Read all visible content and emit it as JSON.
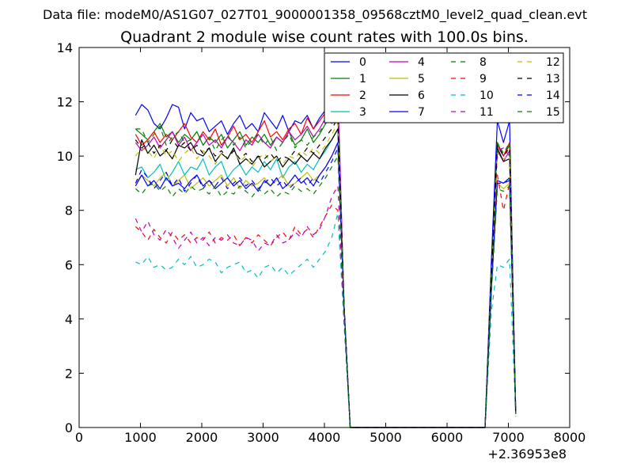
{
  "chart_data": {
    "type": "line",
    "suptitle": "Data file: modeM0/AS1G07_027T01_9000001358_09568cztM0_level2_quad_clean.evt",
    "title": "Quadrant 2 module wise count rates with 100.0s bins.",
    "xlabel": "",
    "ylabel": "",
    "x_offset_label": "+2.36953e8",
    "xlim": [
      0,
      8000
    ],
    "ylim": [
      0,
      14
    ],
    "xticks": [
      "0",
      "1000",
      "2000",
      "3000",
      "4000",
      "5000",
      "6000",
      "7000",
      "8000"
    ],
    "yticks": [
      "0",
      "2",
      "4",
      "6",
      "8",
      "10",
      "12",
      "14"
    ],
    "grid": false,
    "legend_location": "top-right",
    "legend_columns": 4,
    "x": [
      920,
      1020,
      1120,
      1220,
      1320,
      1420,
      1520,
      1620,
      1720,
      1820,
      1920,
      2020,
      2120,
      2220,
      2320,
      2420,
      2520,
      2620,
      2720,
      2820,
      2920,
      3020,
      3120,
      3220,
      3320,
      3420,
      3520,
      3620,
      3720,
      3820,
      3920,
      4020,
      4120,
      4220,
      4320,
      4420,
      4520,
      4620,
      4720,
      4820,
      4920,
      5020,
      5120,
      5220,
      5320,
      5420,
      5520,
      5620,
      5720,
      5820,
      5920,
      6020,
      6120,
      6220,
      6320,
      6420,
      6520,
      6620,
      6720,
      6820,
      6920,
      7020,
      7120
    ],
    "series": [
      {
        "name": "0",
        "color": "#0000ff",
        "dash": "solid",
        "values": [
          11.5,
          11.9,
          11.7,
          11.2,
          11.0,
          11.4,
          11.9,
          11.8,
          11.0,
          11.6,
          11.3,
          11.4,
          10.9,
          11.1,
          11.3,
          10.8,
          11.2,
          11.5,
          11.0,
          11.2,
          10.9,
          11.6,
          11.3,
          11.0,
          11.5,
          10.9,
          11.3,
          11.2,
          11.5,
          11.0,
          11.4,
          11.7,
          11.9,
          12.0,
          4.5,
          0,
          0,
          0,
          0,
          0,
          0,
          0,
          0,
          0,
          0,
          0,
          0,
          0,
          0,
          0,
          0,
          0,
          0,
          0,
          0,
          0,
          0,
          0,
          6.0,
          11.3,
          10.5,
          11.3,
          0.5
        ]
      },
      {
        "name": "1",
        "color": "#008000",
        "dash": "solid",
        "values": [
          11.0,
          10.8,
          10.6,
          10.9,
          11.2,
          10.7,
          10.9,
          10.5,
          10.8,
          10.6,
          10.9,
          10.4,
          10.7,
          10.5,
          10.8,
          10.3,
          10.6,
          10.9,
          10.4,
          10.7,
          10.5,
          10.8,
          10.4,
          10.7,
          10.5,
          10.9,
          10.4,
          10.6,
          11.0,
          10.5,
          10.8,
          11.2,
          11.5,
          11.8,
          4.5,
          0,
          0,
          0,
          0,
          0,
          0,
          0,
          0,
          0,
          0,
          0,
          0,
          0,
          0,
          0,
          0,
          0,
          0,
          0,
          0,
          0,
          0,
          0,
          5.5,
          10.5,
          10.0,
          10.4,
          0.5
        ]
      },
      {
        "name": "2",
        "color": "#ff0000",
        "dash": "solid",
        "values": [
          10.8,
          10.4,
          10.6,
          10.9,
          10.5,
          10.8,
          10.6,
          10.9,
          11.2,
          10.7,
          10.5,
          10.9,
          10.6,
          11.0,
          10.4,
          10.7,
          11.1,
          10.6,
          10.8,
          10.5,
          10.9,
          11.3,
          10.7,
          10.9,
          10.6,
          11.0,
          11.2,
          10.8,
          11.4,
          11.0,
          11.3,
          11.6,
          11.2,
          11.5,
          4.5,
          0,
          0,
          0,
          0,
          0,
          0,
          0,
          0,
          0,
          0,
          0,
          0,
          0,
          0,
          0,
          0,
          0,
          0,
          0,
          0,
          0,
          0,
          0,
          5.5,
          10.4,
          10.0,
          10.5,
          0.5
        ]
      },
      {
        "name": "3",
        "color": "#00bfbf",
        "dash": "solid",
        "values": [
          9.5,
          9.6,
          9.2,
          9.4,
          9.7,
          9.1,
          9.4,
          9.8,
          9.3,
          9.6,
          9.5,
          9.9,
          9.3,
          9.6,
          9.8,
          9.2,
          9.5,
          9.7,
          9.3,
          9.6,
          9.4,
          9.8,
          9.5,
          9.9,
          9.2,
          9.6,
          9.8,
          9.4,
          9.7,
          9.5,
          9.9,
          10.2,
          10.6,
          11.0,
          4.5,
          0,
          0,
          0,
          0,
          0,
          0,
          0,
          0,
          0,
          0,
          0,
          0,
          0,
          0,
          0,
          0,
          0,
          0,
          0,
          0,
          0,
          0,
          0,
          5.0,
          9.1,
          9.0,
          9.2,
          0.5
        ]
      },
      {
        "name": "4",
        "color": "#bf00bf",
        "dash": "solid",
        "values": [
          10.5,
          10.2,
          10.4,
          10.7,
          10.3,
          10.6,
          10.9,
          10.4,
          10.7,
          10.2,
          10.5,
          10.8,
          10.4,
          10.6,
          10.3,
          10.7,
          10.5,
          10.2,
          10.6,
          10.4,
          10.8,
          10.5,
          10.3,
          10.7,
          10.5,
          10.9,
          10.6,
          10.8,
          11.1,
          10.7,
          11.0,
          11.4,
          11.8,
          12.6,
          4.5,
          0,
          0,
          0,
          0,
          0,
          0,
          0,
          0,
          0,
          0,
          0,
          0,
          0,
          0,
          0,
          0,
          0,
          0,
          0,
          0,
          0,
          0,
          0,
          5.5,
          10.2,
          9.8,
          10.2,
          0.5
        ]
      },
      {
        "name": "5",
        "color": "#bfbf00",
        "dash": "solid",
        "values": [
          9.0,
          9.3,
          9.1,
          8.9,
          9.2,
          9.4,
          8.9,
          9.1,
          9.3,
          8.8,
          9.0,
          9.2,
          8.9,
          9.1,
          9.3,
          8.9,
          9.2,
          8.8,
          9.1,
          8.9,
          9.0,
          9.2,
          8.9,
          9.1,
          9.3,
          8.9,
          9.0,
          9.2,
          9.4,
          9.1,
          9.3,
          9.6,
          10.0,
          10.5,
          4.5,
          0,
          0,
          0,
          0,
          0,
          0,
          0,
          0,
          0,
          0,
          0,
          0,
          0,
          0,
          0,
          0,
          0,
          0,
          0,
          0,
          0,
          0,
          0,
          5.0,
          9.0,
          8.8,
          9.0,
          0.5
        ]
      },
      {
        "name": "6",
        "color": "#000000",
        "dash": "solid",
        "values": [
          9.3,
          10.6,
          10.1,
          10.4,
          10.0,
          10.2,
          9.9,
          10.4,
          10.3,
          10.5,
          10.1,
          10.0,
          10.3,
          9.8,
          10.1,
          9.9,
          10.3,
          9.7,
          9.9,
          9.7,
          10.0,
          9.6,
          9.8,
          10.0,
          9.6,
          9.9,
          9.7,
          10.0,
          9.8,
          10.1,
          9.9,
          10.3,
          10.6,
          11.0,
          4.5,
          0,
          0,
          0,
          0,
          0,
          0,
          0,
          0,
          0,
          0,
          0,
          0,
          0,
          0,
          0,
          0,
          0,
          0,
          0,
          0,
          0,
          0,
          0,
          5.5,
          10.3,
          9.8,
          9.9,
          0.5
        ]
      },
      {
        "name": "7",
        "color": "#0000ff",
        "dash": "solid",
        "values": [
          8.9,
          9.3,
          8.9,
          9.1,
          8.8,
          9.2,
          8.9,
          9.0,
          8.8,
          9.1,
          9.3,
          8.9,
          9.1,
          8.8,
          9.0,
          9.2,
          8.9,
          9.1,
          8.8,
          9.0,
          8.7,
          9.1,
          8.9,
          9.2,
          8.8,
          9.0,
          9.3,
          9.0,
          9.2,
          8.9,
          9.3,
          9.6,
          10.0,
          10.5,
          4.5,
          0,
          0,
          0,
          0,
          0,
          0,
          0,
          0,
          0,
          0,
          0,
          0,
          0,
          0,
          0,
          0,
          0,
          0,
          0,
          0,
          0,
          0,
          0,
          5.0,
          9.1,
          9.0,
          9.2,
          0.5
        ]
      },
      {
        "name": "8",
        "color": "#008000",
        "dash": "dashed",
        "values": [
          11.0,
          11.0,
          10.5,
          10.8,
          11.1,
          10.4,
          10.7,
          10.9,
          10.5,
          10.6,
          10.9,
          10.4,
          10.7,
          10.2,
          10.6,
          10.8,
          10.4,
          10.7,
          10.3,
          10.6,
          10.8,
          10.4,
          10.7,
          10.2,
          10.5,
          10.8,
          10.3,
          10.6,
          10.4,
          10.7,
          10.9,
          11.2,
          11.4,
          11.6,
          4.5,
          0,
          0,
          0,
          0,
          0,
          0,
          0,
          0,
          0,
          0,
          0,
          0,
          0,
          0,
          0,
          0,
          0,
          0,
          0,
          0,
          0,
          0,
          0,
          5.5,
          10.5,
          10.1,
          10.5,
          0.5
        ]
      },
      {
        "name": "9",
        "color": "#ff0000",
        "dash": "dashed",
        "values": [
          7.4,
          7.2,
          6.9,
          7.3,
          7.0,
          6.8,
          7.2,
          6.9,
          7.1,
          6.8,
          7.0,
          6.9,
          7.2,
          6.8,
          7.0,
          6.9,
          7.1,
          6.7,
          7.0,
          6.8,
          7.1,
          6.9,
          6.7,
          7.0,
          7.2,
          6.9,
          7.4,
          7.1,
          7.3,
          7.0,
          7.4,
          7.8,
          8.2,
          8.0,
          4.2,
          0,
          0,
          0,
          0,
          0,
          0,
          0,
          0,
          0,
          0,
          0,
          0,
          0,
          0,
          0,
          0,
          0,
          0,
          0,
          0,
          0,
          0,
          0,
          5.0,
          9.3,
          8.0,
          9.0,
          0.5
        ]
      },
      {
        "name": "10",
        "color": "#00bfbf",
        "dash": "dashed",
        "values": [
          6.1,
          6.0,
          6.3,
          5.9,
          6.0,
          5.8,
          5.9,
          6.2,
          6.0,
          6.3,
          5.9,
          6.0,
          6.2,
          6.1,
          5.7,
          5.9,
          6.0,
          6.1,
          5.7,
          5.8,
          5.5,
          5.9,
          6.0,
          5.7,
          5.9,
          5.6,
          5.8,
          6.0,
          6.2,
          5.9,
          6.2,
          6.5,
          7.0,
          7.9,
          3.8,
          0,
          0,
          0,
          0,
          0,
          0,
          0,
          0,
          0,
          0,
          0,
          0,
          0,
          0,
          0,
          0,
          0,
          0,
          0,
          0,
          0,
          0,
          0,
          4.2,
          6.0,
          5.9,
          6.2,
          0.4
        ]
      },
      {
        "name": "11",
        "color": "#bf00bf",
        "dash": "dashed",
        "values": [
          7.7,
          7.2,
          7.6,
          7.1,
          6.9,
          7.3,
          7.0,
          6.6,
          6.9,
          7.2,
          6.8,
          7.0,
          6.7,
          7.0,
          6.9,
          7.1,
          6.8,
          6.7,
          7.0,
          6.9,
          6.5,
          6.8,
          6.7,
          7.1,
          6.8,
          6.9,
          7.2,
          7.0,
          7.4,
          7.1,
          7.3,
          7.8,
          8.5,
          8.9,
          4.0,
          0,
          0,
          0,
          0,
          0,
          0,
          0,
          0,
          0,
          0,
          0,
          0,
          0,
          0,
          0,
          0,
          0,
          0,
          0,
          0,
          0,
          0,
          0,
          4.8,
          10.2,
          10.3,
          10.0,
          0.5
        ]
      },
      {
        "name": "12",
        "color": "#bfbf00",
        "dash": "dashed",
        "values": [
          10.0,
          10.3,
          10.2,
          9.9,
          10.4,
          10.0,
          10.2,
          9.8,
          10.1,
          10.3,
          9.9,
          10.2,
          10.0,
          9.7,
          10.1,
          9.9,
          10.2,
          9.8,
          10.0,
          9.6,
          9.9,
          10.1,
          9.8,
          10.0,
          9.7,
          10.0,
          9.9,
          10.2,
          10.0,
          10.3,
          10.1,
          10.4,
          10.8,
          11.2,
          4.5,
          0,
          0,
          0,
          0,
          0,
          0,
          0,
          0,
          0,
          0,
          0,
          0,
          0,
          0,
          0,
          0,
          0,
          0,
          0,
          0,
          0,
          0,
          0,
          5.3,
          10.1,
          9.9,
          10.0,
          0.5
        ]
      },
      {
        "name": "13",
        "color": "#000000",
        "dash": "dashed",
        "values": [
          10.6,
          10.3,
          10.5,
          10.1,
          10.4,
          10.2,
          10.6,
          10.3,
          10.5,
          10.2,
          10.4,
          10.1,
          10.3,
          10.0,
          10.2,
          9.9,
          10.2,
          9.9,
          10.1,
          9.8,
          10.0,
          9.9,
          10.1,
          9.8,
          10.0,
          9.9,
          10.2,
          10.0,
          10.3,
          10.1,
          10.4,
          10.7,
          11.0,
          11.4,
          4.5,
          0,
          0,
          0,
          0,
          0,
          0,
          0,
          0,
          0,
          0,
          0,
          0,
          0,
          0,
          0,
          0,
          0,
          0,
          0,
          0,
          0,
          0,
          0,
          5.4,
          10.4,
          10.0,
          10.3,
          0.5
        ]
      },
      {
        "name": "14",
        "color": "#0000ff",
        "dash": "dashed",
        "values": [
          9.0,
          9.5,
          9.2,
          8.8,
          9.1,
          9.4,
          8.9,
          9.2,
          8.7,
          9.0,
          9.3,
          8.8,
          9.1,
          8.9,
          9.2,
          8.8,
          9.0,
          9.2,
          8.9,
          9.1,
          8.8,
          9.0,
          9.2,
          8.9,
          9.1,
          8.8,
          9.0,
          9.2,
          8.9,
          9.2,
          9.0,
          9.4,
          9.8,
          10.3,
          4.4,
          0,
          0,
          0,
          0,
          0,
          0,
          0,
          0,
          0,
          0,
          0,
          0,
          0,
          0,
          0,
          0,
          0,
          0,
          0,
          0,
          0,
          0,
          0,
          5.0,
          9.0,
          9.0,
          9.1,
          0.5
        ]
      },
      {
        "name": "15",
        "color": "#008000",
        "dash": "dashed",
        "values": [
          8.8,
          8.6,
          8.9,
          9.0,
          8.7,
          8.9,
          8.5,
          8.8,
          8.6,
          8.9,
          8.7,
          8.8,
          8.6,
          8.9,
          8.5,
          8.7,
          8.6,
          8.9,
          8.7,
          8.5,
          8.8,
          8.6,
          8.8,
          8.5,
          8.7,
          8.6,
          8.9,
          8.7,
          8.8,
          8.6,
          8.9,
          9.2,
          9.6,
          10.0,
          4.3,
          0,
          0,
          0,
          0,
          0,
          0,
          0,
          0,
          0,
          0,
          0,
          0,
          0,
          0,
          0,
          0,
          0,
          0,
          0,
          0,
          0,
          0,
          0,
          4.8,
          8.8,
          8.7,
          8.9,
          0.5
        ]
      }
    ]
  }
}
